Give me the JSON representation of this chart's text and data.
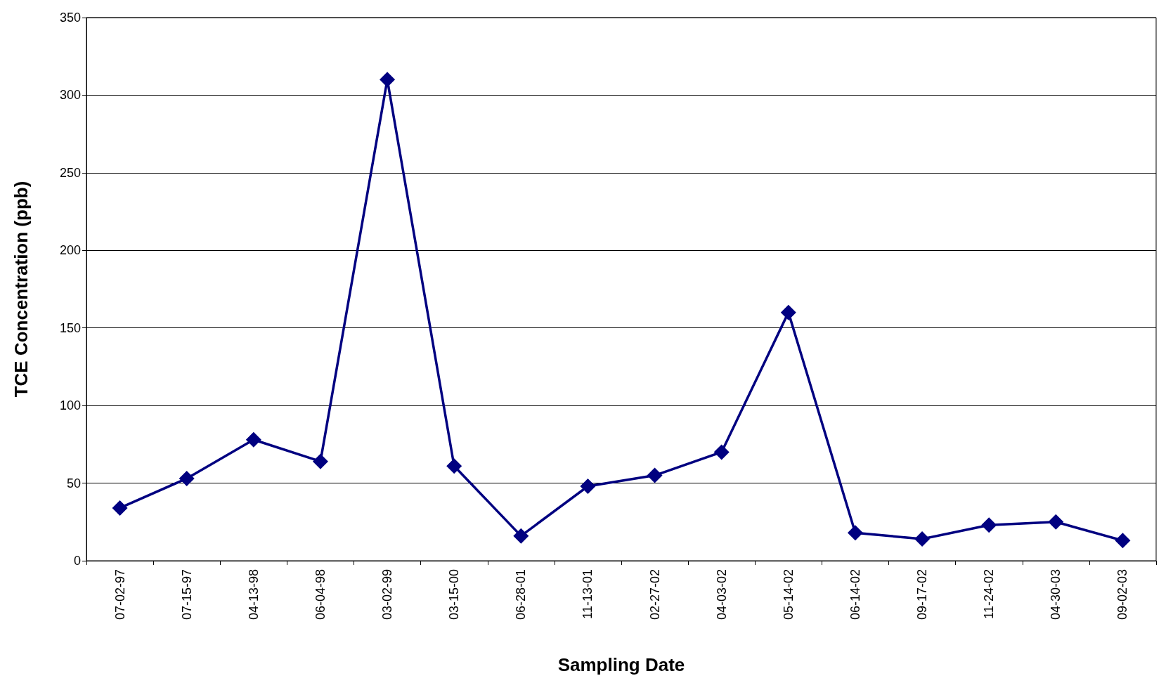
{
  "chart_data": {
    "type": "line",
    "xlabel": "Sampling Date",
    "ylabel": "TCE Concentration (ppb)",
    "categories": [
      "07-02-97",
      "07-15-97",
      "04-13-98",
      "06-04-98",
      "03-02-99",
      "03-15-00",
      "06-28-01",
      "11-13-01",
      "02-27-02",
      "04-03-02",
      "05-14-02",
      "06-14-02",
      "09-17-02",
      "11-24-02",
      "04-30-03",
      "09-02-03"
    ],
    "series": [
      {
        "color": "#000080",
        "values": [
          34,
          53,
          78,
          64,
          310,
          61,
          16,
          48,
          55,
          70,
          160,
          18,
          14,
          23,
          25,
          13
        ]
      }
    ],
    "ylim": [
      0,
      350
    ],
    "yticks": [
      0,
      50,
      100,
      150,
      200,
      250,
      300,
      350
    ],
    "grid": "y",
    "marker": "diamond",
    "line_style": "solid"
  }
}
